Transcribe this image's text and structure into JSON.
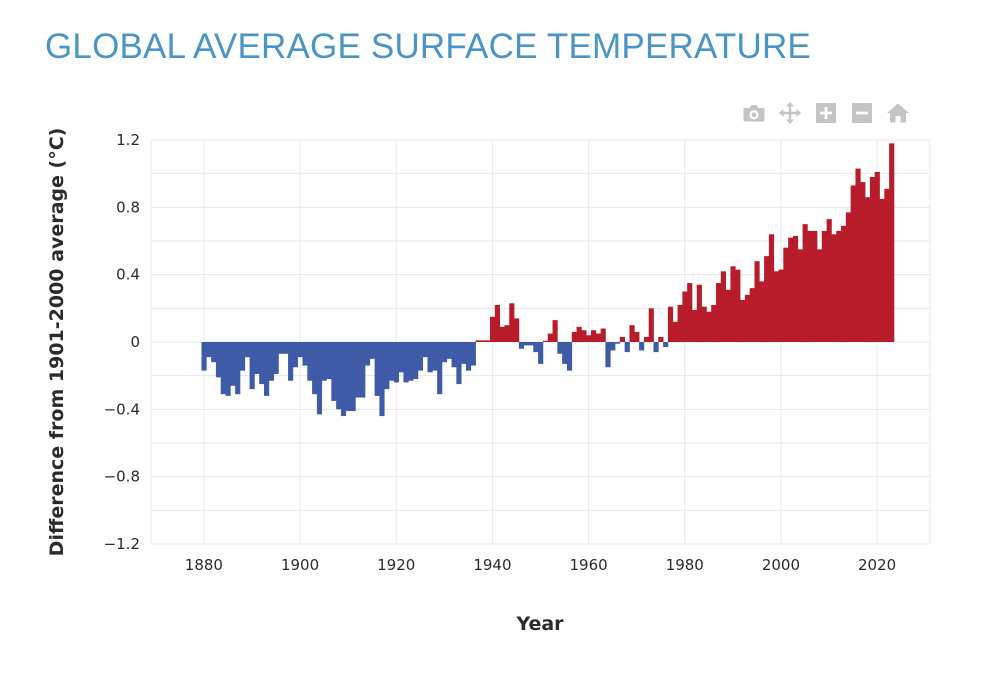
{
  "page": {
    "title": "GLOBAL AVERAGE SURFACE TEMPERATURE"
  },
  "colors": {
    "title": "#4a95c6",
    "positive": "#b81c2b",
    "negative": "#3f5ba8",
    "grid": "#e8e8e8",
    "axis_text": "#2b2b2b",
    "toolbar_icon": "#c4c4c4"
  },
  "toolbar": {
    "items": [
      {
        "name": "camera-icon",
        "action": "Download plot as a png"
      },
      {
        "name": "pan-icon",
        "action": "Pan"
      },
      {
        "name": "zoom-in-icon",
        "action": "Zoom in"
      },
      {
        "name": "zoom-out-icon",
        "action": "Zoom out"
      },
      {
        "name": "home-icon",
        "action": "Reset axes"
      }
    ]
  },
  "chart_data": {
    "type": "bar",
    "title": "",
    "xlabel": "Year",
    "ylabel": "Difference from 1901-2000 average (°C)",
    "xlim": [
      1869,
      2031
    ],
    "ylim": [
      -1.2,
      1.2
    ],
    "grid": true,
    "legend": "none",
    "x_ticks": [
      1880,
      1900,
      1920,
      1940,
      1960,
      1980,
      2000,
      2020
    ],
    "y_ticks": [
      {
        "value": 1.2,
        "label": "1.2"
      },
      {
        "value": 0.8,
        "label": "0.8"
      },
      {
        "value": 0.4,
        "label": "0.4"
      },
      {
        "value": 0,
        "label": "0"
      },
      {
        "value": -0.4,
        "label": "−0.4"
      },
      {
        "value": -0.8,
        "label": "−0.8"
      },
      {
        "value": -1.2,
        "label": "−1.2"
      }
    ],
    "x_start": 1880,
    "x_end": 2023,
    "values": [
      -0.17,
      -0.09,
      -0.12,
      -0.21,
      -0.31,
      -0.32,
      -0.26,
      -0.31,
      -0.17,
      -0.09,
      -0.28,
      -0.19,
      -0.25,
      -0.32,
      -0.23,
      -0.19,
      -0.07,
      -0.07,
      -0.23,
      -0.15,
      -0.09,
      -0.14,
      -0.23,
      -0.31,
      -0.43,
      -0.23,
      -0.22,
      -0.35,
      -0.4,
      -0.44,
      -0.41,
      -0.41,
      -0.33,
      -0.33,
      -0.14,
      -0.1,
      -0.32,
      -0.44,
      -0.28,
      -0.23,
      -0.24,
      -0.18,
      -0.24,
      -0.23,
      -0.22,
      -0.17,
      -0.09,
      -0.18,
      -0.17,
      -0.31,
      -0.12,
      -0.1,
      -0.15,
      -0.25,
      -0.13,
      -0.17,
      -0.14,
      0.01,
      0.01,
      0.01,
      0.15,
      0.22,
      0.09,
      0.1,
      0.23,
      0.14,
      -0.04,
      -0.02,
      -0.02,
      -0.06,
      -0.13,
      0.0,
      0.05,
      0.13,
      -0.07,
      -0.13,
      -0.17,
      0.06,
      0.09,
      0.07,
      0.04,
      0.07,
      0.05,
      0.08,
      -0.15,
      -0.05,
      -0.01,
      0.03,
      -0.06,
      0.1,
      0.06,
      -0.05,
      0.03,
      0.2,
      -0.06,
      0.03,
      -0.03,
      0.21,
      0.12,
      0.22,
      0.3,
      0.35,
      0.19,
      0.34,
      0.21,
      0.18,
      0.22,
      0.35,
      0.42,
      0.31,
      0.45,
      0.43,
      0.25,
      0.28,
      0.32,
      0.48,
      0.36,
      0.51,
      0.64,
      0.42,
      0.43,
      0.56,
      0.62,
      0.63,
      0.55,
      0.7,
      0.66,
      0.66,
      0.55,
      0.66,
      0.73,
      0.64,
      0.66,
      0.69,
      0.77,
      0.93,
      1.03,
      0.95,
      0.86,
      0.98,
      1.01,
      0.85,
      0.91,
      1.18
    ]
  }
}
